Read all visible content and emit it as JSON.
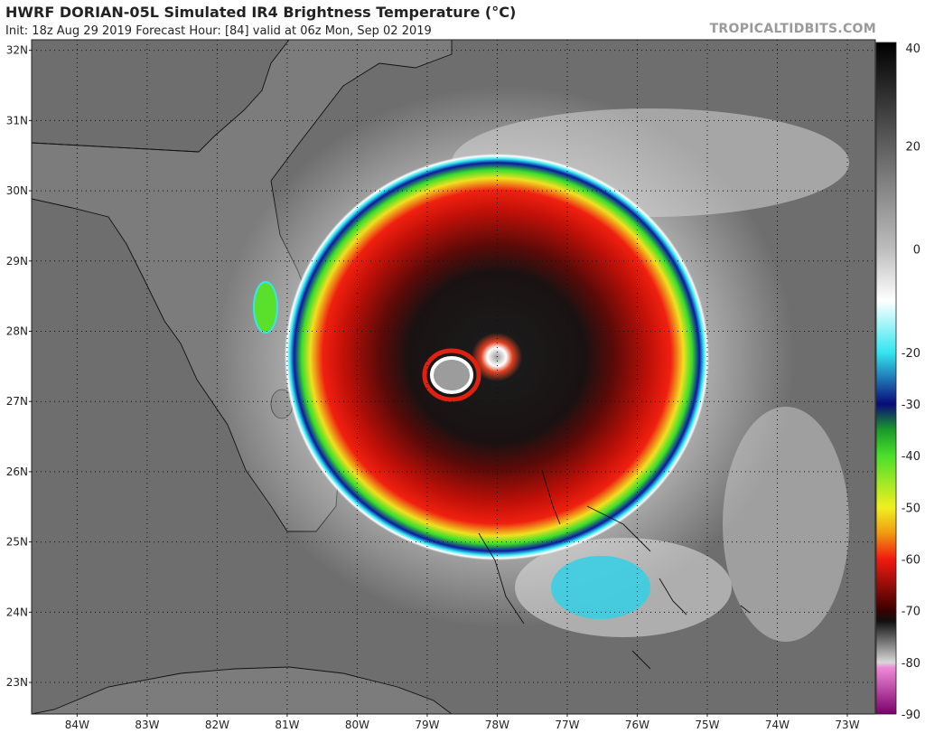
{
  "header": {
    "title": "HWRF DORIAN-05L Simulated IR4 Brightness Temperature (°C)",
    "subtitle": "Init: 18z Aug 29 2019   Forecast Hour: [84]   valid at 06z Mon, Sep 02 2019",
    "watermark": "TROPICALTIDBITS.COM"
  },
  "map": {
    "lon_ticks": [
      {
        "value": -84,
        "label": "84W"
      },
      {
        "value": -83,
        "label": "83W"
      },
      {
        "value": -82,
        "label": "82W"
      },
      {
        "value": -81,
        "label": "81W"
      },
      {
        "value": -80,
        "label": "80W"
      },
      {
        "value": -79,
        "label": "79W"
      },
      {
        "value": -78,
        "label": "78W"
      },
      {
        "value": -77,
        "label": "77W"
      },
      {
        "value": -76,
        "label": "76W"
      },
      {
        "value": -75,
        "label": "75W"
      },
      {
        "value": -74,
        "label": "74W"
      },
      {
        "value": -73,
        "label": "73W"
      }
    ],
    "lat_ticks": [
      {
        "value": 32,
        "label": "32N"
      },
      {
        "value": 31,
        "label": "31N"
      },
      {
        "value": 30,
        "label": "30N"
      },
      {
        "value": 29,
        "label": "29N"
      },
      {
        "value": 28,
        "label": "28N"
      },
      {
        "value": 27,
        "label": "27N"
      },
      {
        "value": 26,
        "label": "26N"
      },
      {
        "value": 25,
        "label": "25N"
      },
      {
        "value": 24,
        "label": "24N"
      },
      {
        "value": 23,
        "label": "23N"
      }
    ],
    "lon_range": [
      -84.65,
      -72.6
    ],
    "lat_range": [
      22.55,
      32.15
    ],
    "storm_center": {
      "lon": -78.7,
      "lat": 27.45
    },
    "background_color": "#6e6e6e"
  },
  "colorbar": {
    "ticks": [
      {
        "value": 40,
        "label": "40"
      },
      {
        "value": 20,
        "label": "20"
      },
      {
        "value": 0,
        "label": "0"
      },
      {
        "value": -20,
        "label": "-20"
      },
      {
        "value": -30,
        "label": "-30"
      },
      {
        "value": -40,
        "label": "-40"
      },
      {
        "value": -50,
        "label": "-50"
      },
      {
        "value": -60,
        "label": "-60"
      },
      {
        "value": -70,
        "label": "-70"
      },
      {
        "value": -80,
        "label": "-80"
      },
      {
        "value": -90,
        "label": "-90"
      }
    ],
    "range": [
      -90,
      40
    ],
    "stops": [
      {
        "value": 40,
        "color": "#000000"
      },
      {
        "value": 0,
        "color": "#bdbdbd"
      },
      {
        "value": -10,
        "color": "#ffffff"
      },
      {
        "value": -20,
        "color": "#34e6f0"
      },
      {
        "value": -30,
        "color": "#0a0a7a"
      },
      {
        "value": -35,
        "color": "#1a9a2a"
      },
      {
        "value": -40,
        "color": "#4adf2a"
      },
      {
        "value": -50,
        "color": "#f0f020"
      },
      {
        "value": -55,
        "color": "#f09a10"
      },
      {
        "value": -60,
        "color": "#f01a10"
      },
      {
        "value": -70,
        "color": "#3a0000"
      },
      {
        "value": -72,
        "color": "#101010"
      },
      {
        "value": -80,
        "color": "#d8d8d8"
      },
      {
        "value": -81,
        "color": "#f08ad8"
      },
      {
        "value": -90,
        "color": "#7a006a"
      }
    ]
  }
}
